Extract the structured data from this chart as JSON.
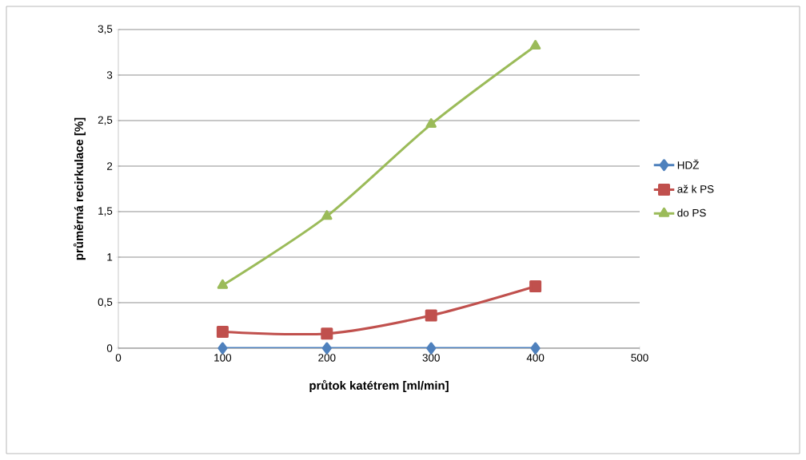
{
  "chart_data": {
    "type": "line",
    "xlabel": "průtok katétrem [ml/min]",
    "ylabel": "průměrná recirkulace [%]",
    "xlim": [
      0,
      500
    ],
    "xticks": [
      0,
      100,
      200,
      300,
      400,
      500
    ],
    "ylim": [
      0,
      3.5
    ],
    "yticks": [
      0,
      {
        "value": 0.5,
        "label": "0,5"
      },
      1,
      {
        "value": 1.5,
        "label": "1,5"
      },
      2,
      {
        "value": 2.5,
        "label": "2,5"
      },
      3,
      {
        "value": 3.5,
        "label": "3,5"
      }
    ],
    "grid": "y",
    "legend": "right",
    "x": [
      100,
      200,
      300,
      400
    ],
    "series": [
      {
        "name": "HDŽ",
        "color": "#4f81bd",
        "marker": "diamond",
        "values": [
          0,
          0,
          0,
          0
        ]
      },
      {
        "name": "až k PS",
        "color": "#c0504d",
        "marker": "square",
        "values": [
          0.18,
          0.16,
          0.36,
          0.68
        ]
      },
      {
        "name": "do PS",
        "color": "#9bbb59",
        "marker": "triangle",
        "values": [
          0.69,
          1.45,
          2.46,
          3.32
        ]
      }
    ]
  }
}
